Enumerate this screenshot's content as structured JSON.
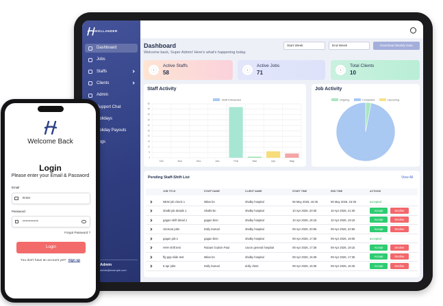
{
  "sidebar": {
    "logo": "HOLLANDER",
    "items": [
      "Dashboard",
      "Jobs",
      "Staffs",
      "Clients",
      "Admin",
      "Support Chat",
      "Holidays",
      "Holiday Payouts",
      "Logs"
    ],
    "user": "Admin",
    "email": "admin@example.com"
  },
  "header": {
    "title": "Dashboard",
    "subtitle": "Welcome back, Super Admin! Here's what's happening today.",
    "start": "Start Week",
    "end": "End Week",
    "download": "Download Weekly Data"
  },
  "cards": [
    {
      "label": "Active Staffs",
      "value": 58
    },
    {
      "label": "Active Jobs",
      "value": 71
    },
    {
      "label": "Total Clients",
      "value": 10
    }
  ],
  "chart_data": [
    {
      "type": "bar",
      "title": "Staff Activity",
      "categories": [
        "Oct",
        "Nov",
        "Dec",
        "Jan",
        "Feb",
        "Mar",
        "Apr",
        "May"
      ],
      "series": [
        {
          "name": "Staff Onboarded",
          "color": "#a9c8f2",
          "values": [
            0,
            0,
            0,
            0,
            47,
            1,
            6,
            4
          ]
        }
      ],
      "colors": [
        "#a8e6d4",
        "#a8e6d4",
        "#a8e6d4",
        "#a8e6d4",
        "#a8e6d4",
        "#9be3b4",
        "#f7dc7a",
        "#f4a6a6"
      ],
      "ylim": [
        0,
        50
      ],
      "yticks": [
        0,
        5,
        10,
        15,
        20,
        25,
        30,
        35,
        40,
        45,
        50
      ],
      "grid": true
    },
    {
      "type": "pie",
      "title": "Job Activity",
      "categories": [
        "Ongoing",
        "Completed",
        "Upcoming"
      ],
      "values": [
        3,
        97,
        0
      ],
      "colors": [
        "#a8e6c0",
        "#a9c8f2",
        "#f7e08a"
      ]
    }
  ],
  "table": {
    "title": "Pending Staff-Shift List",
    "view_all": "View All",
    "headers": [
      "JOB TITLE",
      "STAFF NAME",
      "CLIENT NAME",
      "START TIME",
      "END TIME",
      "ACTIONS"
    ],
    "rows": [
      {
        "cells": [
          "NEW job check 1",
          "Milan bn",
          "shalby hospital",
          "06 May 2026, 15:35",
          "06 May 2026, 15:35"
        ],
        "actions": [
          "accepted"
        ]
      },
      {
        "cells": [
          "shalbi job details 1",
          "Shalbi bn",
          "shalby hospital",
          "10 Apr 2026, 20:30",
          "10 Apr 2026, 21:30"
        ],
        "actions": [
          "Accept",
          "Decline"
        ]
      },
      {
        "cells": [
          "gagan shift detail 1",
          "gagan binn",
          "shalby hospital",
          "10 Apr 2026, 16:15",
          "10 Apr 2026, 19:15"
        ],
        "actions": [
          "Accept",
          "Decline"
        ]
      },
      {
        "cells": [
          "clockout jobs",
          "Dolly kumari",
          "shalby hospital",
          "09 Apr 2026, 20:55",
          "09 Apr 2026, 22:55"
        ],
        "actions": [
          "Accept",
          "Decline"
        ]
      },
      {
        "cells": [
          "gagan job-1",
          "gagan binn",
          "shalby hospital",
          "09 Apr 2026, 17:35",
          "09 Apr 2026, 19:05"
        ],
        "actions": [
          "accepted"
        ]
      },
      {
        "cells": [
          "HHH shift test",
          "Rubani Godvin Paul",
          "cavon general hospital",
          "09 Apr 2026, 17:36",
          "09 Apr 2026, 19:15"
        ],
        "actions": [
          "Accept",
          "Decline"
        ]
      },
      {
        "cells": [
          "ffg ppp slide test",
          "Milan bn",
          "shalby hospital",
          "09 Apr 2026, 15:36",
          "09 Apr 2026, 17:35"
        ],
        "actions": [
          "Accept",
          "Decline"
        ]
      },
      {
        "cells": [
          "6 apr jobs",
          "Dolly kumari",
          "dolly client",
          "09 Apr 2026, 15:35",
          "09 Apr 2026, 16:45"
        ],
        "actions": [
          "Accept",
          "Decline"
        ]
      }
    ]
  },
  "phone": {
    "welcome": "Welcome Back",
    "title": "Login",
    "prompt": "Please enter your Email & Password",
    "email_label": "Email",
    "email_placeholder": "Enter",
    "password_label": "Password",
    "password_value": "••••••••••",
    "forgot": "Forgot Password ?",
    "button": "Login",
    "no_account": "You don't have an account yet?",
    "signup": "Sign up"
  }
}
